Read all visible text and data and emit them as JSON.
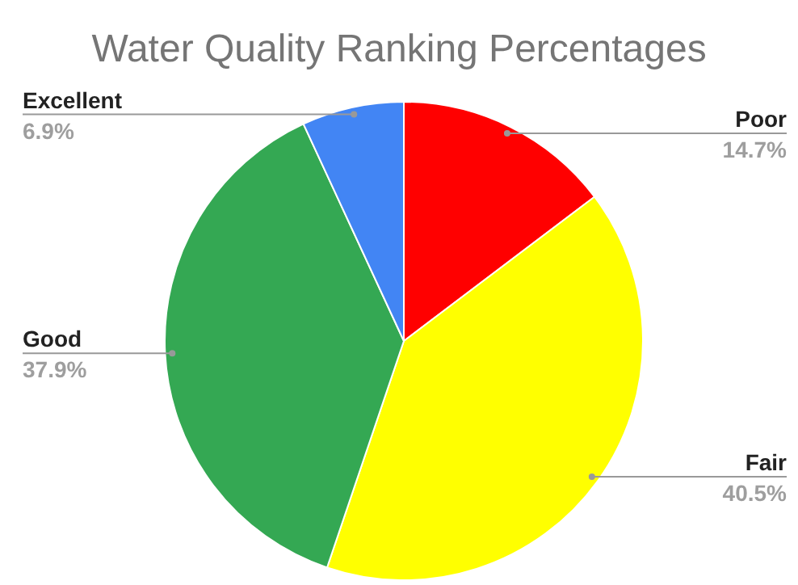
{
  "chart_data": {
    "type": "pie",
    "title": "Water Quality Ranking Percentages",
    "categories": [
      "Poor",
      "Fair",
      "Good",
      "Excellent"
    ],
    "values": [
      14.7,
      40.5,
      37.9,
      6.9
    ],
    "value_labels": [
      "14.7%",
      "40.5%",
      "37.9%",
      "6.9%"
    ],
    "colors": [
      "#ff0000",
      "#ffff00",
      "#34a853",
      "#4285f4"
    ]
  }
}
